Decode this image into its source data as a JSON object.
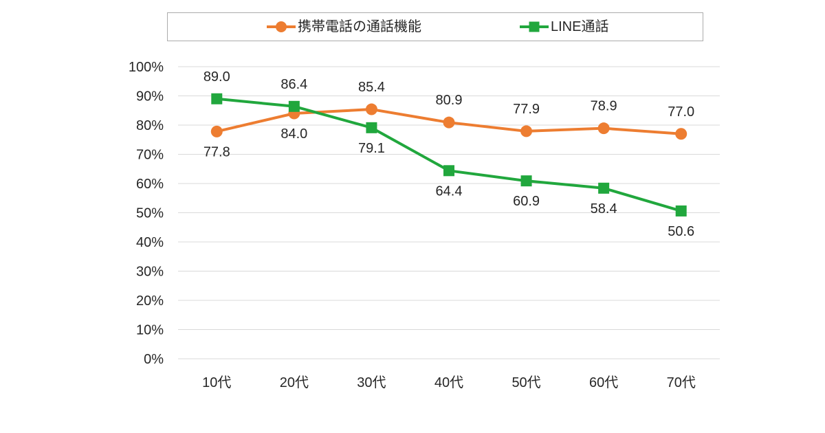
{
  "chart_data": {
    "type": "line",
    "title": "",
    "xlabel": "",
    "ylabel": "",
    "categories": [
      "10代",
      "20代",
      "30代",
      "40代",
      "50代",
      "60代",
      "70代"
    ],
    "series": [
      {
        "name": "携帯電話の通話機能",
        "color": "#ED7D31",
        "marker": "circle",
        "values": [
          77.8,
          84.0,
          85.4,
          80.9,
          77.9,
          78.9,
          77.0
        ],
        "label_positions": [
          "below",
          "below",
          "above",
          "above",
          "above",
          "above",
          "above"
        ]
      },
      {
        "name": "LINE通話",
        "color": "#21A73D",
        "marker": "square",
        "values": [
          89.0,
          86.4,
          79.1,
          64.4,
          60.9,
          58.4,
          50.6
        ],
        "label_positions": [
          "above",
          "above",
          "below",
          "below",
          "below",
          "below",
          "below"
        ]
      }
    ],
    "ylim": [
      0,
      100
    ],
    "ytick_step": 10,
    "ytick_suffix": "%",
    "grid": true,
    "legend_position": "top"
  },
  "styles": {
    "background": "#FFFFFF",
    "grid_color": "#D9D9D9",
    "axis_text_color": "#262626",
    "data_label_color": "#262626",
    "legend_border_color": "#ABABAB"
  }
}
